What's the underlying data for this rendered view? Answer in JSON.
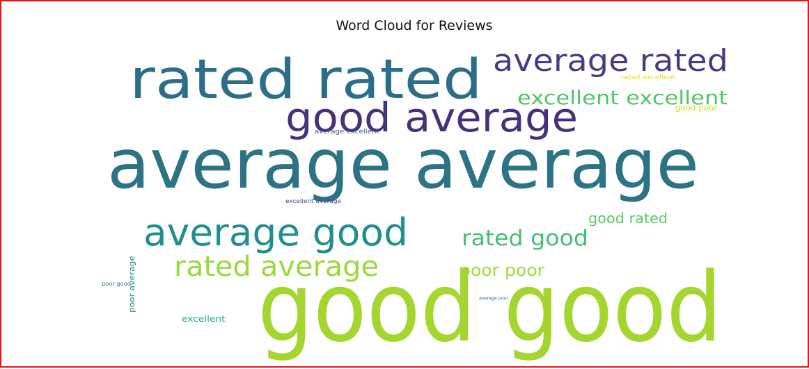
{
  "chart_data": {
    "type": "wordcloud",
    "title": "Word Cloud for Reviews",
    "words": [
      {
        "text": "good good",
        "weight": 100,
        "color": "#a5d630"
      },
      {
        "text": "average average",
        "weight": 92,
        "color": "#2c7383"
      },
      {
        "text": "rated rated",
        "weight": 70,
        "color": "#2c6e87"
      },
      {
        "text": "good average",
        "weight": 50,
        "color": "#46327a"
      },
      {
        "text": "average rated",
        "weight": 38,
        "color": "#433e84"
      },
      {
        "text": "average good",
        "weight": 47,
        "color": "#21908c"
      },
      {
        "text": "rated average",
        "weight": 35,
        "color": "#9bd93c"
      },
      {
        "text": "excellent excellent",
        "weight": 26,
        "color": "#52c569"
      },
      {
        "text": "rated good",
        "weight": 28,
        "color": "#44bf70"
      },
      {
        "text": "poor poor",
        "weight": 22,
        "color": "#a2da37"
      },
      {
        "text": "good rated",
        "weight": 19,
        "color": "#5ec962"
      },
      {
        "text": "good poor",
        "weight": 9,
        "color": "#d0e11c"
      },
      {
        "text": "rated excellent",
        "weight": 7,
        "color": "#e5e419"
      },
      {
        "text": "average excellent",
        "weight": 8,
        "color": "#3b528b"
      },
      {
        "text": "excellent average",
        "weight": 6,
        "color": "#3e4a89"
      },
      {
        "text": "poor average",
        "weight": 9,
        "color": "#25838e"
      },
      {
        "text": "poor good",
        "weight": 7,
        "color": "#2c728e"
      },
      {
        "text": "excellent",
        "weight": 10,
        "color": "#27ad81"
      },
      {
        "text": "average poor",
        "weight": 5,
        "color": "#31668e"
      }
    ]
  }
}
